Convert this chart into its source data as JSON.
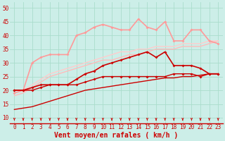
{
  "background_color": "#cceee8",
  "grid_color": "#aadddd",
  "xlabel": "Vent moyen/en rafales ( km/h )",
  "xlabel_color": "#cc0000",
  "xlabel_fontsize": 7,
  "tick_color": "#cc0000",
  "tick_fontsize": 5.5,
  "ylim": [
    8,
    52
  ],
  "xlim": [
    -0.5,
    23.5
  ],
  "yticks": [
    10,
    15,
    20,
    25,
    30,
    35,
    40,
    45,
    50
  ],
  "xticks": [
    0,
    1,
    2,
    3,
    4,
    5,
    6,
    7,
    8,
    9,
    10,
    11,
    12,
    13,
    14,
    15,
    16,
    17,
    18,
    19,
    20,
    21,
    22,
    23
  ],
  "lines": [
    {
      "x": [
        0,
        1,
        2,
        3,
        4,
        5,
        6,
        7,
        8,
        9,
        10,
        11,
        12,
        13,
        14,
        15,
        16,
        17,
        18,
        19,
        20,
        21,
        22,
        23
      ],
      "y": [
        13,
        13.5,
        14,
        15,
        16,
        17,
        18,
        19,
        20,
        20.5,
        21,
        21.5,
        22,
        22.5,
        23,
        23.5,
        24,
        24.5,
        24.5,
        25,
        25,
        25.5,
        26,
        26
      ],
      "color": "#cc0000",
      "lw": 1.0,
      "marker": null,
      "ms": 0,
      "zorder": 3
    },
    {
      "x": [
        0,
        1,
        2,
        3,
        4,
        5,
        6,
        7,
        8,
        9,
        10,
        11,
        12,
        13,
        14,
        15,
        16,
        17,
        18,
        19,
        20,
        21,
        22,
        23
      ],
      "y": [
        20,
        20,
        20,
        21,
        22,
        22,
        22,
        22,
        23,
        24,
        25,
        25,
        25,
        25,
        25,
        25,
        25,
        25,
        26,
        26,
        26,
        25,
        26,
        26
      ],
      "color": "#cc0000",
      "lw": 1.0,
      "marker": "D",
      "ms": 2.0,
      "zorder": 4
    },
    {
      "x": [
        0,
        1,
        2,
        3,
        4,
        5,
        6,
        7,
        8,
        9,
        10,
        11,
        12,
        13,
        14,
        15,
        16,
        17,
        18,
        19,
        20,
        21,
        22,
        23
      ],
      "y": [
        20,
        20,
        21,
        22,
        22,
        22,
        22,
        24,
        26,
        27,
        29,
        30,
        31,
        32,
        33,
        34,
        32,
        34,
        29,
        29,
        29,
        28,
        26,
        26
      ],
      "color": "#cc0000",
      "lw": 1.2,
      "marker": "D",
      "ms": 2.0,
      "zorder": 5
    },
    {
      "x": [
        0,
        1,
        2,
        3,
        4,
        5,
        6,
        7,
        8,
        9,
        10,
        11,
        12,
        13,
        14,
        15,
        16,
        17,
        18,
        19,
        20,
        21,
        22,
        23
      ],
      "y": [
        18,
        19,
        21,
        23,
        25,
        26,
        27,
        28,
        29,
        30,
        31,
        31,
        32,
        33,
        33,
        34,
        35,
        35,
        35,
        36,
        36,
        36,
        37,
        38
      ],
      "color": "#ffbbbb",
      "lw": 1.0,
      "marker": null,
      "ms": 0,
      "zorder": 1
    },
    {
      "x": [
        0,
        1,
        2,
        3,
        4,
        5,
        6,
        7,
        8,
        9,
        10,
        11,
        12,
        13,
        14,
        15,
        16,
        17,
        18,
        19,
        20,
        21,
        22,
        23
      ],
      "y": [
        19,
        20,
        22,
        24,
        26,
        27,
        28,
        29,
        30,
        31,
        32,
        33,
        34,
        34,
        35,
        35,
        36,
        36,
        36,
        37,
        37,
        37,
        38,
        38
      ],
      "color": "#ffcccc",
      "lw": 1.0,
      "marker": null,
      "ms": 0,
      "zorder": 1
    },
    {
      "x": [
        0,
        1,
        2,
        3,
        4,
        5,
        6,
        7,
        8,
        9,
        10,
        11,
        12,
        13,
        14,
        15,
        16,
        17,
        18,
        19,
        20,
        21,
        22,
        23
      ],
      "y": [
        19,
        20,
        30,
        32,
        33,
        33,
        33,
        40,
        41,
        43,
        44,
        43,
        42,
        42,
        46,
        43,
        42,
        45,
        38,
        38,
        42,
        42,
        38,
        37
      ],
      "color": "#ff9999",
      "lw": 1.2,
      "marker": "D",
      "ms": 2.0,
      "zorder": 2
    }
  ],
  "arrow_color": "#cc0000"
}
